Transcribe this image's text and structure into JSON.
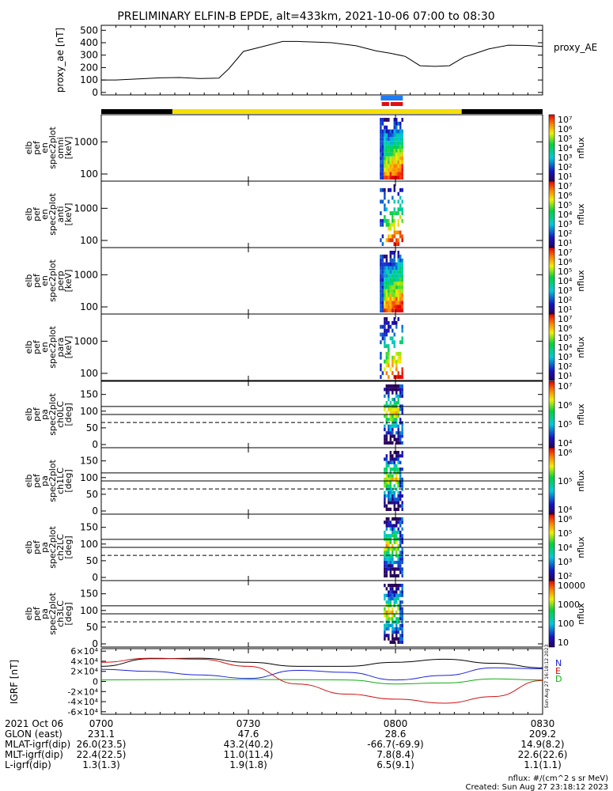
{
  "title": "PRELIMINARY ELFIN-B EPDE, alt=433km, 2021-10-06 07:00 to 08:30",
  "colors": {
    "bar_black": "#000000",
    "bar_yellow": "#f5e000",
    "bar_blue": "#1e7cf5",
    "bar_red": "#e01010",
    "line_black": "#000000",
    "line_blue": "#1a22d8",
    "line_red": "#d01010",
    "line_green": "#10b010"
  },
  "chart_data": [
    {
      "type": "line",
      "id": "proxy_ae",
      "ylabel": "proxy_ae [nT]",
      "legend": "proxy_AE",
      "ylim": [
        -20,
        540
      ],
      "yticks": [
        "0",
        "100",
        "200",
        "300",
        "400",
        "500"
      ],
      "ytick_values": [
        0,
        100,
        200,
        300,
        400,
        500
      ],
      "x_minutes": [
        0,
        3,
        8,
        12,
        16,
        20,
        24,
        26,
        29,
        33,
        37,
        40,
        44,
        47,
        52,
        56,
        59,
        62,
        65,
        68,
        71,
        74,
        76,
        79,
        83,
        87,
        90
      ],
      "values": [
        100,
        100,
        110,
        118,
        120,
        112,
        115,
        190,
        330,
        370,
        410,
        410,
        405,
        400,
        375,
        335,
        315,
        290,
        215,
        210,
        215,
        285,
        310,
        350,
        380,
        378,
        370
      ]
    },
    {
      "type": "heatmap",
      "id": "spec_omni",
      "ylabel": "elb pef en spec2plot omni [keV]",
      "yscale": "log",
      "yticks": [
        "100",
        "1000"
      ],
      "cbar_label": "nflux",
      "cbar_ticks": [
        "10¹",
        "10²",
        "10³",
        "10⁴",
        "10⁵",
        "10⁶",
        "10⁷"
      ]
    },
    {
      "type": "heatmap",
      "id": "spec_anti",
      "ylabel": "elb pef en spec2plot anti [keV]",
      "yscale": "log",
      "yticks": [
        "100",
        "1000"
      ],
      "cbar_label": "nflux",
      "cbar_ticks": [
        "10¹",
        "10²",
        "10³",
        "10⁴",
        "10⁵",
        "10⁶",
        "10⁷"
      ]
    },
    {
      "type": "heatmap",
      "id": "spec_perp",
      "ylabel": "elb pef en spec2plot perp [keV]",
      "yscale": "log",
      "yticks": [
        "100",
        "1000"
      ],
      "cbar_label": "nflux",
      "cbar_ticks": [
        "10¹",
        "10²",
        "10³",
        "10⁴",
        "10⁵",
        "10⁶",
        "10⁷"
      ]
    },
    {
      "type": "heatmap",
      "id": "spec_para",
      "ylabel": "elb pef en spec2plot para [keV]",
      "yscale": "log",
      "yticks": [
        "100",
        "1000"
      ],
      "cbar_label": "nflux",
      "cbar_ticks": [
        "10¹",
        "10²",
        "10³",
        "10⁴",
        "10⁵",
        "10⁶",
        "10⁷"
      ]
    },
    {
      "type": "heatmap",
      "id": "pa_ch0",
      "ylabel": "elb pef pa spec2plot ch0LC [deg]",
      "yticks": [
        "0",
        "50",
        "100",
        "150"
      ],
      "cbar_label": "nflux",
      "cbar_ticks": [
        "10⁴",
        "10⁵",
        "10⁶",
        "10⁷"
      ]
    },
    {
      "type": "heatmap",
      "id": "pa_ch1",
      "ylabel": "elb pef pa spec2plot ch1LC [deg]",
      "yticks": [
        "0",
        "50",
        "100",
        "150"
      ],
      "cbar_label": "nflux",
      "cbar_ticks": [
        "10⁴",
        "10⁵",
        "10⁶"
      ]
    },
    {
      "type": "heatmap",
      "id": "pa_ch2",
      "ylabel": "elb pef pa spec2plot ch2LC [deg]",
      "yticks": [
        "0",
        "50",
        "100",
        "150"
      ],
      "cbar_label": "nflux",
      "cbar_ticks": [
        "10²",
        "10³",
        "10⁴",
        "10⁵",
        "10⁶"
      ]
    },
    {
      "type": "heatmap",
      "id": "pa_ch3",
      "ylabel": "elb pef pa spec2plot ch3LC [deg]",
      "yticks": [
        "0",
        "50",
        "100",
        "150"
      ],
      "cbar_label": "nflux",
      "cbar_ticks": [
        "10",
        "100",
        "1000",
        "10000"
      ]
    },
    {
      "type": "line",
      "id": "igrf",
      "ylabel": "IGRF [nT]",
      "ylim": [
        -65000,
        65000
      ],
      "yticks": [
        "-6×10⁴",
        "-4×10⁴",
        "-2×10⁴",
        "0",
        "2×10⁴",
        "4×10⁴",
        "6×10⁴"
      ],
      "ytick_values": [
        -60000,
        -40000,
        -20000,
        0,
        20000,
        40000,
        60000
      ],
      "legend": [
        "N",
        "E",
        "D"
      ],
      "x_minutes": [
        0,
        10,
        20,
        30,
        40,
        50,
        60,
        70,
        80,
        90
      ],
      "series": [
        {
          "name": "N",
          "values": [
            24000,
            20000,
            13000,
            6000,
            22000,
            18000,
            3000,
            12000,
            27000,
            25000
          ]
        },
        {
          "name": "E",
          "values": [
            3000,
            3500,
            4000,
            4000,
            3500,
            3000,
            -5000,
            -3000,
            5000,
            3000
          ]
        },
        {
          "name": "D",
          "values": [
            38000,
            46000,
            44000,
            30000,
            -5000,
            -25000,
            -35000,
            -43000,
            -30000,
            2000
          ]
        }
      ],
      "black_values": [
        30000,
        45000,
        46000,
        38000,
        30000,
        30000,
        38000,
        44000,
        36000,
        27000
      ]
    }
  ],
  "x_axis": {
    "tick_labels": [
      "0700",
      "0730",
      "0800",
      "0830"
    ],
    "tick_minutes": [
      0,
      30,
      60,
      90
    ],
    "rows": [
      {
        "label": "2021 Oct 06",
        "values": [
          "0700",
          "0730",
          "0800",
          "0830"
        ]
      },
      {
        "label": "GLON (east)",
        "values": [
          "231.1",
          "47.6",
          "28.6",
          "209.2"
        ]
      },
      {
        "label": "MLAT-igrf(dip)",
        "values": [
          "26.0(23.5)",
          "43.2(40.2)",
          "-66.7(-69.9)",
          "14.9(8.2)"
        ]
      },
      {
        "label": "MLT-igrf(dip)",
        "values": [
          "22.4(22.5)",
          "11.0(11.4)",
          "7.8(8.4)",
          "22.6(22.6)"
        ]
      },
      {
        "label": "L-igrf(dip)",
        "values": [
          "1.3(1.3)",
          "1.9(1.8)",
          "6.5(9.1)",
          "1.1(1.1)"
        ]
      }
    ]
  },
  "footer": {
    "units": "nflux: #/(cm^2 s sr MeV)",
    "created": "Created: Sun Aug 27 23:18:12 2023",
    "side_stamp": "Sun Aug 27 16:18:12 2023"
  }
}
